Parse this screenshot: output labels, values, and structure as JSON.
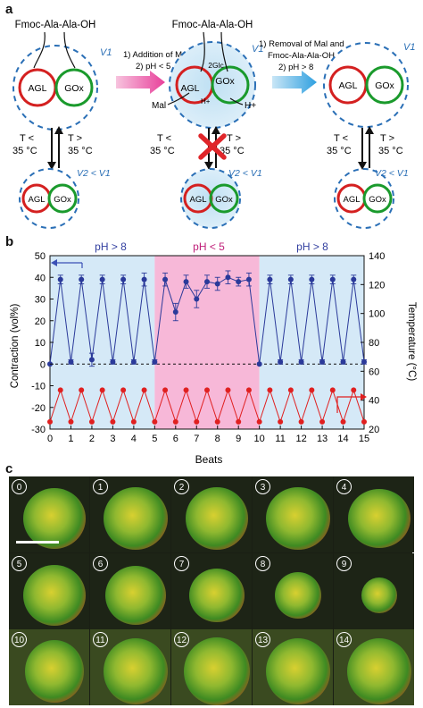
{
  "panel_a": {
    "letter": "a",
    "reagent": "Fmoc-Ala-Ala-OH",
    "v1": "V1",
    "v2_lt_v1": "V2 < V1",
    "agl": "AGL",
    "gox": "GOx",
    "step1_line1": "1) Addition of Mal",
    "step1_line2": "2) pH < 5",
    "step2_line1": "1) Removal of Mal and",
    "step2_line2": "Fmoc-Ala-Ala-OH",
    "step2_line3": "2) pH > 8",
    "mal": "Mal",
    "glc": "2Glc",
    "hplus": "H+",
    "t_less": "T <",
    "t_greater": "T >",
    "temp_35": "35 °C",
    "colors": {
      "agl": "#d42020",
      "gox": "#1a9a2c",
      "vesicle": "#2a6fb6",
      "arrow1": "#e8509a",
      "arrow2": "#4aa8e0",
      "cross": "#e0262a"
    }
  },
  "panel_b": {
    "letter": "b",
    "region_labels": [
      "pH > 8",
      "pH < 5",
      "pH > 8"
    ],
    "region_colors": [
      "#d5e9f7",
      "#f7b8d8",
      "#d5e9f7"
    ],
    "left_axis_label": "Contraction (vol%)",
    "right_axis_label": "Temperature (°C)",
    "x_axis_label": "Beats"
  },
  "chart_data": {
    "type": "line",
    "xlabel": "Beats",
    "ylabel": "Contraction (vol%)",
    "y2label": "Temperature (°C)",
    "xlim": [
      0,
      15
    ],
    "ylim": [
      -30,
      50
    ],
    "y2lim": [
      20,
      140
    ],
    "x_ticks": [
      0,
      1,
      2,
      3,
      4,
      5,
      6,
      7,
      8,
      9,
      10,
      11,
      12,
      13,
      14,
      15
    ],
    "y_ticks": [
      -30,
      -20,
      -10,
      0,
      10,
      20,
      30,
      40,
      50
    ],
    "y2_ticks": [
      20,
      40,
      60,
      80,
      100,
      120,
      140
    ],
    "grid": false,
    "regions": [
      {
        "label": "pH > 8",
        "x": [
          0,
          5
        ]
      },
      {
        "label": "pH < 5",
        "x": [
          5,
          10
        ]
      },
      {
        "label": "pH > 8",
        "x": [
          10,
          15
        ]
      }
    ],
    "series": [
      {
        "axis": "left",
        "color": "#2b3a9a",
        "marker": "circle",
        "x": [
          0,
          0.5,
          1,
          1.5,
          2,
          2.5,
          3,
          3.5,
          4,
          4.5,
          5,
          5.5,
          6,
          6.5,
          7,
          7.5,
          8,
          8.5,
          9,
          9.5,
          10,
          10.5,
          11,
          11.5,
          12,
          12.5,
          13,
          13.5,
          14,
          14.5,
          15
        ],
        "values": [
          0,
          39,
          1,
          39,
          2,
          39,
          1,
          39,
          1,
          39,
          1,
          39,
          24,
          38,
          30,
          38,
          37,
          40,
          38,
          39,
          0,
          39,
          1,
          39,
          1,
          39,
          1,
          39,
          1,
          39,
          1
        ],
        "errors": [
          0,
          2,
          1,
          2,
          3,
          2,
          1,
          2,
          1,
          3,
          1,
          3,
          4,
          3,
          4,
          3,
          3,
          3,
          2,
          3,
          0,
          2,
          1,
          2,
          1,
          2,
          1,
          2,
          1,
          2,
          1
        ]
      },
      {
        "axis": "right",
        "color": "#e02020",
        "marker": "circle",
        "x": [
          0,
          0.5,
          1,
          1.5,
          2,
          2.5,
          3,
          3.5,
          4,
          4.5,
          5,
          5.5,
          6,
          6.5,
          7,
          7.5,
          8,
          8.5,
          9,
          9.5,
          10,
          10.5,
          11,
          11.5,
          12,
          12.5,
          13,
          13.5,
          14,
          14.5,
          15
        ],
        "values": [
          25,
          47,
          25,
          47,
          25,
          47,
          25,
          47,
          25,
          47,
          25,
          47,
          25,
          47,
          25,
          47,
          25,
          47,
          25,
          47,
          25,
          47,
          25,
          47,
          25,
          47,
          25,
          47,
          25,
          47,
          25
        ]
      }
    ]
  },
  "panel_c": {
    "letter": "c",
    "frames": [
      "0",
      "1",
      "2",
      "3",
      "4",
      "5",
      "6",
      "7",
      "8",
      "9",
      "10",
      "11",
      "12",
      "13",
      "14"
    ]
  }
}
